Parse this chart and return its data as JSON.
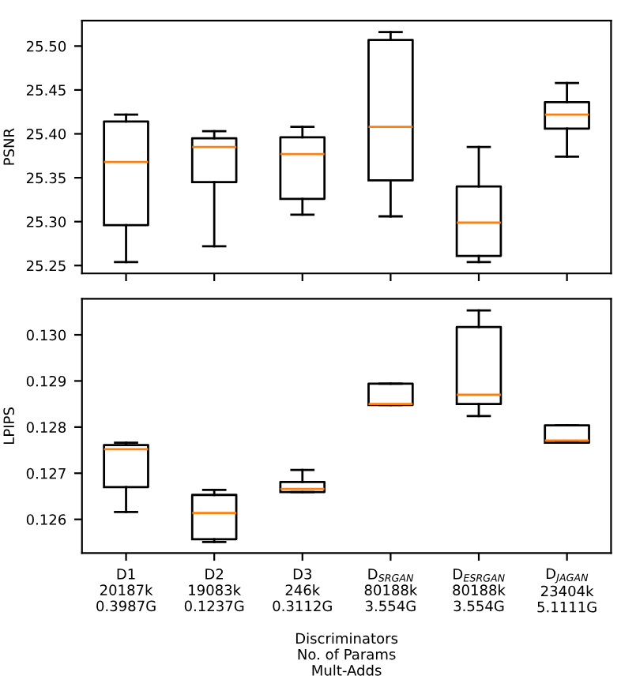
{
  "chart_data": [
    {
      "type": "box",
      "ylabel": "PSNR",
      "categories": [
        null,
        null,
        null,
        null,
        null,
        null
      ],
      "ylim": [
        25.241,
        25.529
      ],
      "yticks": [
        25.25,
        {
          "value": 25.3,
          "label": "25.30"
        },
        25.35,
        {
          "value": 25.4,
          "label": "25.40"
        },
        25.45,
        {
          "value": 25.5,
          "label": "25.50"
        }
      ],
      "tick_labels": "y",
      "grid": false,
      "boxes": [
        {
          "low": 25.254,
          "q1": 25.296,
          "median": 25.368,
          "q3": 25.414,
          "high": 25.422
        },
        {
          "low": 25.272,
          "q1": 25.345,
          "median": 25.385,
          "q3": 25.395,
          "high": 25.403
        },
        {
          "low": 25.308,
          "q1": 25.326,
          "median": 25.377,
          "q3": 25.396,
          "high": 25.408
        },
        {
          "low": 25.306,
          "q1": 25.347,
          "median": 25.408,
          "q3": 25.507,
          "high": 25.516
        },
        {
          "low": 25.254,
          "q1": 25.261,
          "median": 25.299,
          "q3": 25.34,
          "high": 25.385
        },
        {
          "low": 25.374,
          "q1": 25.406,
          "median": 25.422,
          "q3": 25.436,
          "high": 25.458
        }
      ]
    },
    {
      "type": "box",
      "ylabel": "LPIPS",
      "xlabel": "Discriminators\nNo. of Params\nMult-Adds",
      "categories": [
        "D1\n20187k\n0.3987G",
        "D2\n19083k\n0.1237G",
        "D3\n246k\n0.3112G",
        "D$_{SRGAN}$\n80188k\n3.554G",
        "D$_{ESRGAN}$\n80188k\n3.554G",
        "D$_{JAGAN}$\n23404k\n5.1111G"
      ],
      "ylim": [
        0.12527,
        0.13078
      ],
      "yticks": [
        0.126,
        0.127,
        0.128,
        0.129,
        {
          "value": 0.13,
          "label": "0.130"
        }
      ],
      "grid": false,
      "boxes": [
        {
          "low": 0.12616,
          "q1": 0.1267,
          "median": 0.12752,
          "q3": 0.12761,
          "high": 0.12766
        },
        {
          "low": 0.12551,
          "q1": 0.12557,
          "median": 0.12614,
          "q3": 0.12653,
          "high": 0.12664
        },
        {
          "low": 0.12659,
          "q1": 0.12659,
          "median": 0.12666,
          "q3": 0.12681,
          "high": 0.12707
        },
        {
          "low": 0.12848,
          "q1": 0.12848,
          "median": 0.1285,
          "q3": 0.12894,
          "high": 0.12894
        },
        {
          "low": 0.12824,
          "q1": 0.1285,
          "median": 0.1287,
          "q3": 0.13017,
          "high": 0.13053
        },
        {
          "low": 0.12766,
          "q1": 0.12766,
          "median": 0.12771,
          "q3": 0.12804,
          "high": 0.12804
        }
      ]
    }
  ]
}
